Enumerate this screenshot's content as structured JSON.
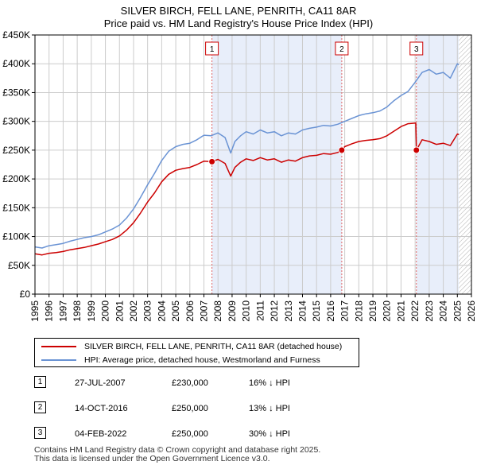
{
  "title": "SILVER BIRCH, FELL LANE, PENRITH, CA11 8AR",
  "subtitle": "Price paid vs. HM Land Registry's House Price Index (HPI)",
  "colors": {
    "price_line": "#cc0000",
    "hpi_line": "#6a93d4",
    "shade": "#e8eefa",
    "marker_line": "#e06666",
    "hatch": "#b0b0b0",
    "grid": "#cccccc"
  },
  "legend": {
    "price_label": "SILVER BIRCH, FELL LANE, PENRITH, CA11 8AR (detached house)",
    "hpi_label": "HPI: Average price, detached house, Westmorland and Furness"
  },
  "sales": [
    {
      "num": "1",
      "date": "27-JUL-2007",
      "price": "£230,000",
      "hpi_diff": "16% ↓ HPI"
    },
    {
      "num": "2",
      "date": "14-OCT-2016",
      "price": "£250,000",
      "hpi_diff": "13% ↓ HPI"
    },
    {
      "num": "3",
      "date": "04-FEB-2022",
      "price": "£250,000",
      "hpi_diff": "30% ↓ HPI"
    }
  ],
  "footer": {
    "line1": "Contains HM Land Registry data © Crown copyright and database right 2025.",
    "line2": "This data is licensed under the Open Government Licence v3.0."
  },
  "chart_data": {
    "type": "line",
    "title": "SILVER BIRCH, FELL LANE, PENRITH, CA11 8AR",
    "subtitle": "Price paid vs. HM Land Registry's House Price Index (HPI)",
    "xlabel": "",
    "ylabel": "",
    "xlim": [
      1995,
      2026
    ],
    "ylim": [
      0,
      450000
    ],
    "x_ticks": [
      "1995",
      "1996",
      "1997",
      "1998",
      "1999",
      "2000",
      "2001",
      "2002",
      "2003",
      "2004",
      "2005",
      "2006",
      "2007",
      "2008",
      "2009",
      "2010",
      "2011",
      "2012",
      "2013",
      "2014",
      "2015",
      "2016",
      "2017",
      "2018",
      "2019",
      "2020",
      "2021",
      "2022",
      "2023",
      "2024",
      "2025",
      "2026"
    ],
    "y_ticks": [
      {
        "value": 0,
        "label": "£0"
      },
      {
        "value": 50000,
        "label": "£50K"
      },
      {
        "value": 100000,
        "label": "£100K"
      },
      {
        "value": 150000,
        "label": "£150K"
      },
      {
        "value": 200000,
        "label": "£200K"
      },
      {
        "value": 250000,
        "label": "£250K"
      },
      {
        "value": 300000,
        "label": "£300K"
      },
      {
        "value": 350000,
        "label": "£350K"
      },
      {
        "value": 400000,
        "label": "£400K"
      },
      {
        "value": 450000,
        "label": "£450K"
      }
    ],
    "shaded_ranges": [
      [
        2007.57,
        2016.79
      ],
      [
        2022.09,
        2025.1
      ]
    ],
    "future_hatch_from": 2025.1,
    "sale_markers": [
      {
        "label": "1",
        "x": 2007.57,
        "y": 230000
      },
      {
        "label": "2",
        "x": 2016.79,
        "y": 250000
      },
      {
        "label": "3",
        "x": 2022.09,
        "y": 250000
      }
    ],
    "series": [
      {
        "name": "HPI: Average price, detached house, Westmorland and Furness",
        "color": "#6a93d4",
        "x": [
          1995,
          1995.5,
          1996,
          1996.5,
          1997,
          1997.5,
          1998,
          1998.5,
          1999,
          1999.5,
          2000,
          2000.5,
          2001,
          2001.5,
          2002,
          2002.5,
          2003,
          2003.5,
          2004,
          2004.5,
          2005,
          2005.5,
          2006,
          2006.5,
          2007,
          2007.5,
          2008,
          2008.5,
          2008.9,
          2009.2,
          2009.6,
          2010,
          2010.5,
          2011,
          2011.5,
          2012,
          2012.5,
          2013,
          2013.5,
          2014,
          2014.5,
          2015,
          2015.5,
          2016,
          2016.5,
          2017,
          2017.5,
          2018,
          2018.5,
          2019,
          2019.5,
          2020,
          2020.5,
          2021,
          2021.5,
          2022,
          2022.5,
          2023,
          2023.5,
          2024,
          2024.5,
          2025,
          2025.1
        ],
        "values": [
          82000,
          80000,
          84000,
          86000,
          88000,
          92000,
          95000,
          98000,
          100000,
          103000,
          108000,
          113000,
          120000,
          132000,
          148000,
          168000,
          190000,
          210000,
          232000,
          248000,
          256000,
          260000,
          262000,
          268000,
          276000,
          275000,
          280000,
          272000,
          245000,
          265000,
          275000,
          282000,
          278000,
          285000,
          280000,
          282000,
          275000,
          280000,
          278000,
          285000,
          288000,
          290000,
          293000,
          292000,
          295000,
          300000,
          305000,
          310000,
          313000,
          315000,
          318000,
          325000,
          336000,
          345000,
          352000,
          368000,
          385000,
          390000,
          382000,
          385000,
          375000,
          400000,
          398000
        ]
      },
      {
        "name": "SILVER BIRCH, FELL LANE, PENRITH, CA11 8AR (detached house)",
        "color": "#cc0000",
        "x": [
          1995,
          1995.5,
          1996,
          1996.5,
          1997,
          1997.5,
          1998,
          1998.5,
          1999,
          1999.5,
          2000,
          2000.5,
          2001,
          2001.5,
          2002,
          2002.5,
          2003,
          2003.5,
          2004,
          2004.5,
          2005,
          2005.5,
          2006,
          2006.5,
          2007,
          2007.57,
          2008,
          2008.5,
          2008.9,
          2009.2,
          2009.6,
          2010,
          2010.5,
          2011,
          2011.5,
          2012,
          2012.5,
          2013,
          2013.5,
          2014,
          2014.5,
          2015,
          2015.5,
          2016,
          2016.5,
          2016.79,
          2017,
          2017.5,
          2018,
          2018.5,
          2019,
          2019.5,
          2020,
          2020.5,
          2021,
          2021.5,
          2022.05,
          2022.09,
          2022.5,
          2023,
          2023.5,
          2024,
          2024.5,
          2025,
          2025.1
        ],
        "values": [
          70000,
          68000,
          71000,
          72000,
          74000,
          77000,
          79000,
          81000,
          84000,
          87000,
          91000,
          95000,
          101000,
          111000,
          124000,
          141000,
          160000,
          176000,
          195000,
          208000,
          215000,
          218000,
          220000,
          225000,
          231000,
          230000,
          234000,
          227000,
          205000,
          220000,
          229000,
          235000,
          232000,
          237000,
          233000,
          235000,
          229000,
          233000,
          231000,
          237000,
          240000,
          241000,
          244000,
          243000,
          246000,
          250000,
          256000,
          261000,
          265000,
          267000,
          268000,
          270000,
          275000,
          283000,
          291000,
          296000,
          297000,
          250000,
          268000,
          265000,
          260000,
          262000,
          258000,
          278000,
          277000
        ]
      }
    ]
  }
}
